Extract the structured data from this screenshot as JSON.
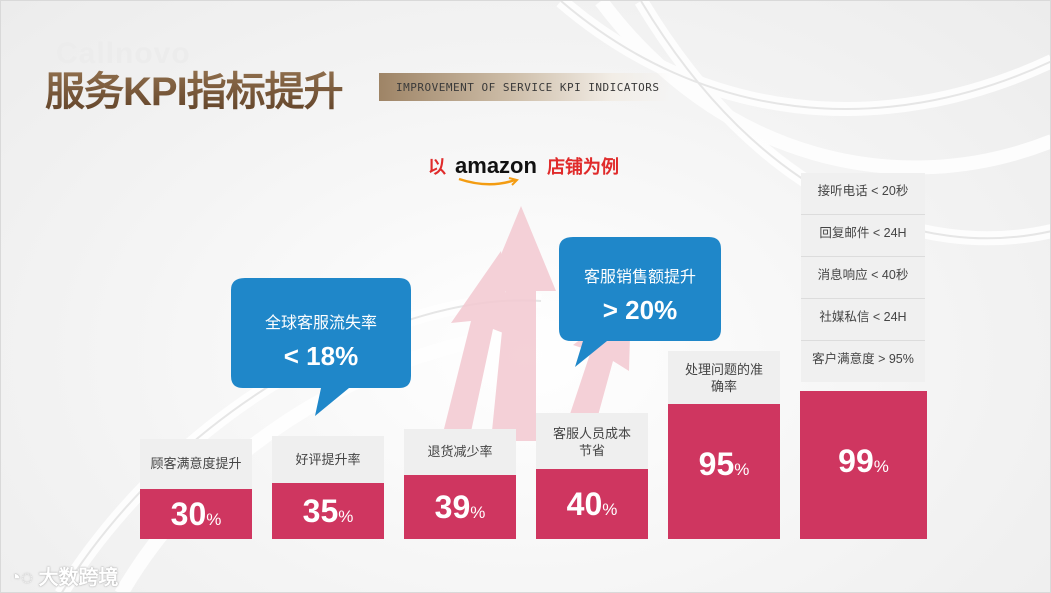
{
  "slide": {
    "ghost_text": "Callnovo",
    "title": "服务KPI指标提升",
    "subtitle": "IMPROVEMENT OF SERVICE KPI INDICATORS",
    "amazon_prefix": "以",
    "amazon_logo": "amazon",
    "amazon_suffix": "店铺为例",
    "watermark": "大数跨境"
  },
  "colors": {
    "accent": "#cf3660",
    "bubble": "#1f87c9",
    "title": "#7a5a3c"
  },
  "bubbles": [
    {
      "label": "全球客服流失率",
      "value": "< 18%"
    },
    {
      "label": "客服销售额提升",
      "value": "> 20%"
    }
  ],
  "cards": [
    {
      "label": "顾客满意度提升",
      "value": "30",
      "unit": "%"
    },
    {
      "label": "好评提升率",
      "value": "35",
      "unit": "%"
    },
    {
      "label": "退货减少率",
      "value": "39",
      "unit": "%"
    },
    {
      "label": "客服人员成本节省",
      "value": "40",
      "unit": "%"
    },
    {
      "label": "处理问题的准确率",
      "value": "95",
      "unit": "%"
    },
    {
      "label": "",
      "value": "99",
      "unit": "%"
    }
  ],
  "response_list": [
    "接听电话 < 20秒",
    "回复邮件 < 24H",
    "消息响应 < 40秒",
    "社媒私信 < 24H",
    "客户满意度 > 95%"
  ]
}
